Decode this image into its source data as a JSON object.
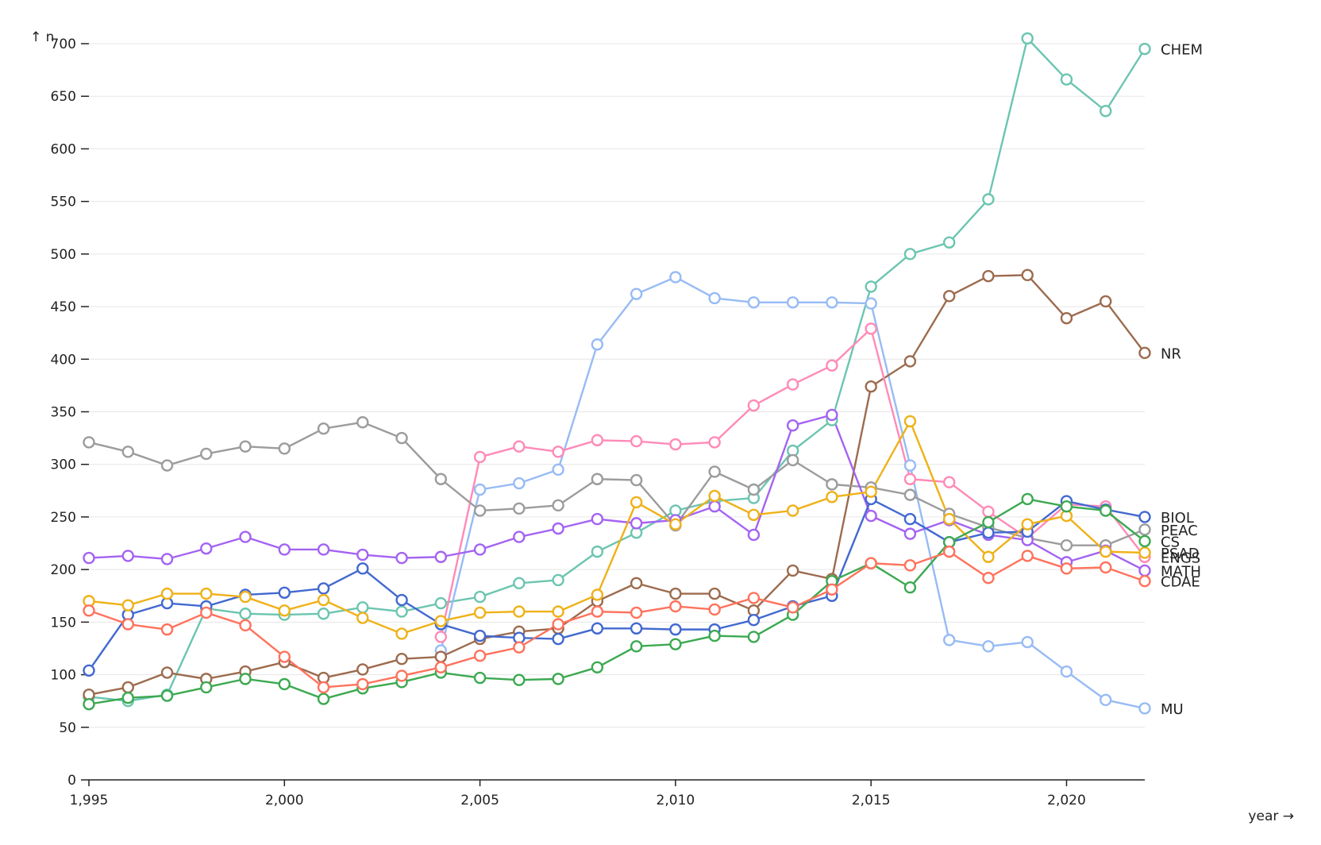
{
  "chart_data": {
    "type": "line",
    "xlabel": "year →",
    "ylabel": "↑ n",
    "xlim": [
      1995,
      2022
    ],
    "ylim": [
      0,
      700
    ],
    "x_ticks": [
      1995,
      2000,
      2005,
      2010,
      2015,
      2020
    ],
    "x_tick_labels": [
      "1,995",
      "2,000",
      "2,005",
      "2,010",
      "2,015",
      "2,020"
    ],
    "y_ticks": [
      0,
      50,
      100,
      150,
      200,
      250,
      300,
      350,
      400,
      450,
      500,
      550,
      600,
      650,
      700
    ],
    "grid": "horizontal",
    "legend": "direct labels at line ends",
    "x": [
      1995,
      1996,
      1997,
      1998,
      1999,
      2000,
      2001,
      2002,
      2003,
      2004,
      2005,
      2006,
      2007,
      2008,
      2009,
      2010,
      2011,
      2012,
      2013,
      2014,
      2015,
      2016,
      2017,
      2018,
      2019,
      2020,
      2021,
      2022
    ],
    "series": [
      {
        "name": "CHEM",
        "color": "#6cc5b0",
        "values": [
          79,
          75,
          81,
          163,
          158,
          157,
          158,
          164,
          160,
          168,
          174,
          187,
          190,
          217,
          235,
          256,
          265,
          268,
          313,
          342,
          469,
          500,
          511,
          552,
          705,
          666,
          636,
          695
        ]
      },
      {
        "name": "MU",
        "color": "#97bbf5",
        "values": [
          null,
          null,
          null,
          null,
          null,
          null,
          null,
          null,
          null,
          123,
          276,
          282,
          295,
          414,
          462,
          478,
          458,
          454,
          454,
          454,
          453,
          299,
          133,
          127,
          131,
          103,
          76,
          68
        ]
      },
      {
        "name": "NR",
        "color": "#9c6b4e",
        "values": [
          81,
          88,
          102,
          96,
          103,
          112,
          97,
          105,
          115,
          117,
          134,
          141,
          144,
          170,
          187,
          177,
          177,
          161,
          199,
          191,
          374,
          398,
          460,
          479,
          480,
          439,
          455,
          406
        ]
      },
      {
        "name": "ENGS",
        "color": "#ff8ab7",
        "values": [
          null,
          null,
          null,
          null,
          null,
          null,
          null,
          null,
          null,
          136,
          307,
          317,
          312,
          323,
          322,
          319,
          321,
          356,
          376,
          394,
          429,
          286,
          283,
          255,
          230,
          262,
          260,
          212
        ]
      },
      {
        "name": "PEAC",
        "color": "#9c9c9c",
        "values": [
          321,
          312,
          299,
          310,
          317,
          315,
          334,
          340,
          325,
          286,
          256,
          258,
          261,
          286,
          285,
          242,
          293,
          276,
          304,
          281,
          278,
          271,
          253,
          240,
          230,
          223,
          223,
          238
        ]
      },
      {
        "name": "MATH",
        "color": "#a463f2",
        "values": [
          211,
          213,
          210,
          220,
          231,
          219,
          219,
          214,
          211,
          212,
          219,
          231,
          239,
          248,
          244,
          247,
          260,
          233,
          337,
          347,
          251,
          234,
          247,
          233,
          228,
          207,
          218,
          199
        ]
      },
      {
        "name": "BIOL",
        "color": "#4269d0",
        "values": [
          104,
          157,
          168,
          165,
          176,
          178,
          182,
          201,
          171,
          148,
          137,
          135,
          134,
          144,
          144,
          143,
          143,
          152,
          165,
          175,
          267,
          248,
          226,
          235,
          236,
          265,
          257,
          250
        ]
      },
      {
        "name": "PSAD",
        "color": "#efb118",
        "values": [
          170,
          166,
          177,
          177,
          174,
          161,
          171,
          154,
          139,
          151,
          159,
          160,
          160,
          176,
          264,
          243,
          270,
          252,
          256,
          269,
          274,
          341,
          248,
          212,
          243,
          251,
          217,
          216
        ]
      },
      {
        "name": "CS",
        "color": "#3ca951",
        "values": [
          72,
          78,
          80,
          88,
          96,
          91,
          77,
          87,
          93,
          102,
          97,
          95,
          96,
          107,
          127,
          129,
          137,
          136,
          157,
          189,
          206,
          183,
          226,
          245,
          267,
          260,
          256,
          227
        ]
      },
      {
        "name": "CDAE",
        "color": "#ff725c",
        "values": [
          161,
          148,
          143,
          159,
          147,
          117,
          88,
          91,
          99,
          107,
          118,
          126,
          148,
          160,
          159,
          165,
          162,
          173,
          164,
          181,
          206,
          204,
          217,
          192,
          213,
          201,
          202,
          189
        ]
      }
    ],
    "end_labels": [
      {
        "text": "CHEM",
        "series": "CHEM",
        "label_value": 695
      },
      {
        "text": "NR",
        "series": "NR",
        "label_value": 406
      },
      {
        "text": "BIOL",
        "series": "BIOL",
        "label_value": 250
      },
      {
        "text": "PEAC",
        "series": "PEAC",
        "label_value": 238
      },
      {
        "text": "CS",
        "series": "CS",
        "label_value": 227
      },
      {
        "text": "PSAD",
        "series": "PSAD",
        "label_value": 216
      },
      {
        "text": "ENGS",
        "series": "ENGS",
        "label_value": 212
      },
      {
        "text": "MATH",
        "series": "MATH",
        "label_value": 199
      },
      {
        "text": "CDAE",
        "series": "CDAE",
        "label_value": 189
      },
      {
        "text": "MU",
        "series": "MU",
        "label_value": 68
      }
    ]
  }
}
